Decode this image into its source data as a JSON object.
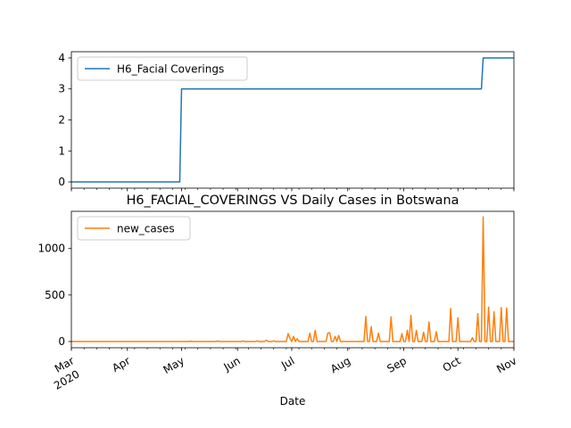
{
  "chart_data": [
    {
      "type": "line",
      "title": "",
      "xlabel": "",
      "ylabel": "",
      "x_range": [
        "2020-03-01",
        "2020-11-01"
      ],
      "ylim": [
        -0.2,
        4.2
      ],
      "yticks": [
        0,
        1,
        2,
        3,
        4
      ],
      "legend_position": "upper-left",
      "grid": false,
      "series": [
        {
          "name": "H6_Facial Coverings",
          "color": "#1f77b4",
          "points": [
            [
              "2020-03-01",
              0
            ],
            [
              "2020-04-30",
              0
            ],
            [
              "2020-05-01",
              3
            ],
            [
              "2020-10-14",
              3
            ],
            [
              "2020-10-15",
              4
            ],
            [
              "2020-11-01",
              4
            ]
          ]
        }
      ]
    },
    {
      "type": "line",
      "title": "H6_FACIAL_COVERINGS VS Daily Cases in Botswana",
      "xlabel": "Date",
      "ylabel": "",
      "x_range": [
        "2020-03-01",
        "2020-11-01"
      ],
      "ylim": [
        -67,
        1400
      ],
      "yticks": [
        0,
        500,
        1000
      ],
      "xticks": [
        {
          "date": "2020-03-01",
          "label": "Mar",
          "sublabel": "2020"
        },
        {
          "date": "2020-04-01",
          "label": "Apr"
        },
        {
          "date": "2020-05-01",
          "label": "May"
        },
        {
          "date": "2020-06-01",
          "label": "Jun"
        },
        {
          "date": "2020-07-01",
          "label": "Jul"
        },
        {
          "date": "2020-08-01",
          "label": "Aug"
        },
        {
          "date": "2020-09-01",
          "label": "Sep"
        },
        {
          "date": "2020-10-01",
          "label": "Oct"
        },
        {
          "date": "2020-11-01",
          "label": "Nov"
        }
      ],
      "legend_position": "upper-left",
      "grid": false,
      "series": [
        {
          "name": "new_cases",
          "color": "#ff7f0e",
          "points": [
            [
              "2020-03-01",
              0
            ],
            [
              "2020-05-05",
              0
            ],
            [
              "2020-05-06",
              4
            ],
            [
              "2020-05-07",
              0
            ],
            [
              "2020-05-20",
              0
            ],
            [
              "2020-05-21",
              6
            ],
            [
              "2020-05-22",
              0
            ],
            [
              "2020-06-03",
              0
            ],
            [
              "2020-06-04",
              5
            ],
            [
              "2020-06-05",
              0
            ],
            [
              "2020-06-11",
              0
            ],
            [
              "2020-06-12",
              7
            ],
            [
              "2020-06-13",
              0
            ],
            [
              "2020-06-16",
              0
            ],
            [
              "2020-06-17",
              14
            ],
            [
              "2020-06-18",
              0
            ],
            [
              "2020-06-20",
              0
            ],
            [
              "2020-06-21",
              8
            ],
            [
              "2020-06-22",
              0
            ],
            [
              "2020-06-28",
              0
            ],
            [
              "2020-06-29",
              85
            ],
            [
              "2020-06-30",
              35
            ],
            [
              "2020-07-01",
              0
            ],
            [
              "2020-07-02",
              55
            ],
            [
              "2020-07-03",
              0
            ],
            [
              "2020-07-04",
              30
            ],
            [
              "2020-07-05",
              0
            ],
            [
              "2020-07-10",
              0
            ],
            [
              "2020-07-11",
              90
            ],
            [
              "2020-07-12",
              0
            ],
            [
              "2020-07-13",
              0
            ],
            [
              "2020-07-14",
              120
            ],
            [
              "2020-07-15",
              0
            ],
            [
              "2020-07-20",
              0
            ],
            [
              "2020-07-21",
              90
            ],
            [
              "2020-07-22",
              95
            ],
            [
              "2020-07-23",
              0
            ],
            [
              "2020-07-24",
              0
            ],
            [
              "2020-07-25",
              55
            ],
            [
              "2020-07-26",
              0
            ],
            [
              "2020-07-26",
              0
            ],
            [
              "2020-07-27",
              65
            ],
            [
              "2020-07-28",
              0
            ],
            [
              "2020-08-10",
              0
            ],
            [
              "2020-08-11",
              270
            ],
            [
              "2020-08-12",
              0
            ],
            [
              "2020-08-13",
              0
            ],
            [
              "2020-08-14",
              160
            ],
            [
              "2020-08-15",
              0
            ],
            [
              "2020-08-17",
              0
            ],
            [
              "2020-08-18",
              90
            ],
            [
              "2020-08-19",
              0
            ],
            [
              "2020-08-24",
              0
            ],
            [
              "2020-08-25",
              265
            ],
            [
              "2020-08-26",
              0
            ],
            [
              "2020-08-30",
              0
            ],
            [
              "2020-08-31",
              85
            ],
            [
              "2020-09-01",
              0
            ],
            [
              "2020-09-02",
              0
            ],
            [
              "2020-09-03",
              120
            ],
            [
              "2020-09-04",
              0
            ],
            [
              "2020-09-04",
              0
            ],
            [
              "2020-09-05",
              280
            ],
            [
              "2020-09-06",
              0
            ],
            [
              "2020-09-07",
              0
            ],
            [
              "2020-09-08",
              120
            ],
            [
              "2020-09-09",
              0
            ],
            [
              "2020-09-11",
              0
            ],
            [
              "2020-09-12",
              100
            ],
            [
              "2020-09-13",
              0
            ],
            [
              "2020-09-14",
              0
            ],
            [
              "2020-09-15",
              210
            ],
            [
              "2020-09-16",
              0
            ],
            [
              "2020-09-18",
              0
            ],
            [
              "2020-09-19",
              105
            ],
            [
              "2020-09-20",
              0
            ],
            [
              "2020-09-26",
              0
            ],
            [
              "2020-09-27",
              355
            ],
            [
              "2020-09-28",
              0
            ],
            [
              "2020-09-30",
              0
            ],
            [
              "2020-10-01",
              255
            ],
            [
              "2020-10-02",
              0
            ],
            [
              "2020-10-08",
              0
            ],
            [
              "2020-10-09",
              40
            ],
            [
              "2020-10-10",
              0
            ],
            [
              "2020-10-11",
              0
            ],
            [
              "2020-10-12",
              300
            ],
            [
              "2020-10-13",
              0
            ],
            [
              "2020-10-14",
              0
            ],
            [
              "2020-10-15",
              1340
            ],
            [
              "2020-10-16",
              0
            ],
            [
              "2020-10-17",
              0
            ],
            [
              "2020-10-18",
              370
            ],
            [
              "2020-10-19",
              0
            ],
            [
              "2020-10-20",
              0
            ],
            [
              "2020-10-21",
              320
            ],
            [
              "2020-10-22",
              0
            ],
            [
              "2020-10-24",
              0
            ],
            [
              "2020-10-25",
              365
            ],
            [
              "2020-10-26",
              0
            ],
            [
              "2020-10-27",
              0
            ],
            [
              "2020-10-28",
              360
            ],
            [
              "2020-10-29",
              0
            ],
            [
              "2020-11-01",
              0
            ]
          ]
        }
      ]
    }
  ]
}
